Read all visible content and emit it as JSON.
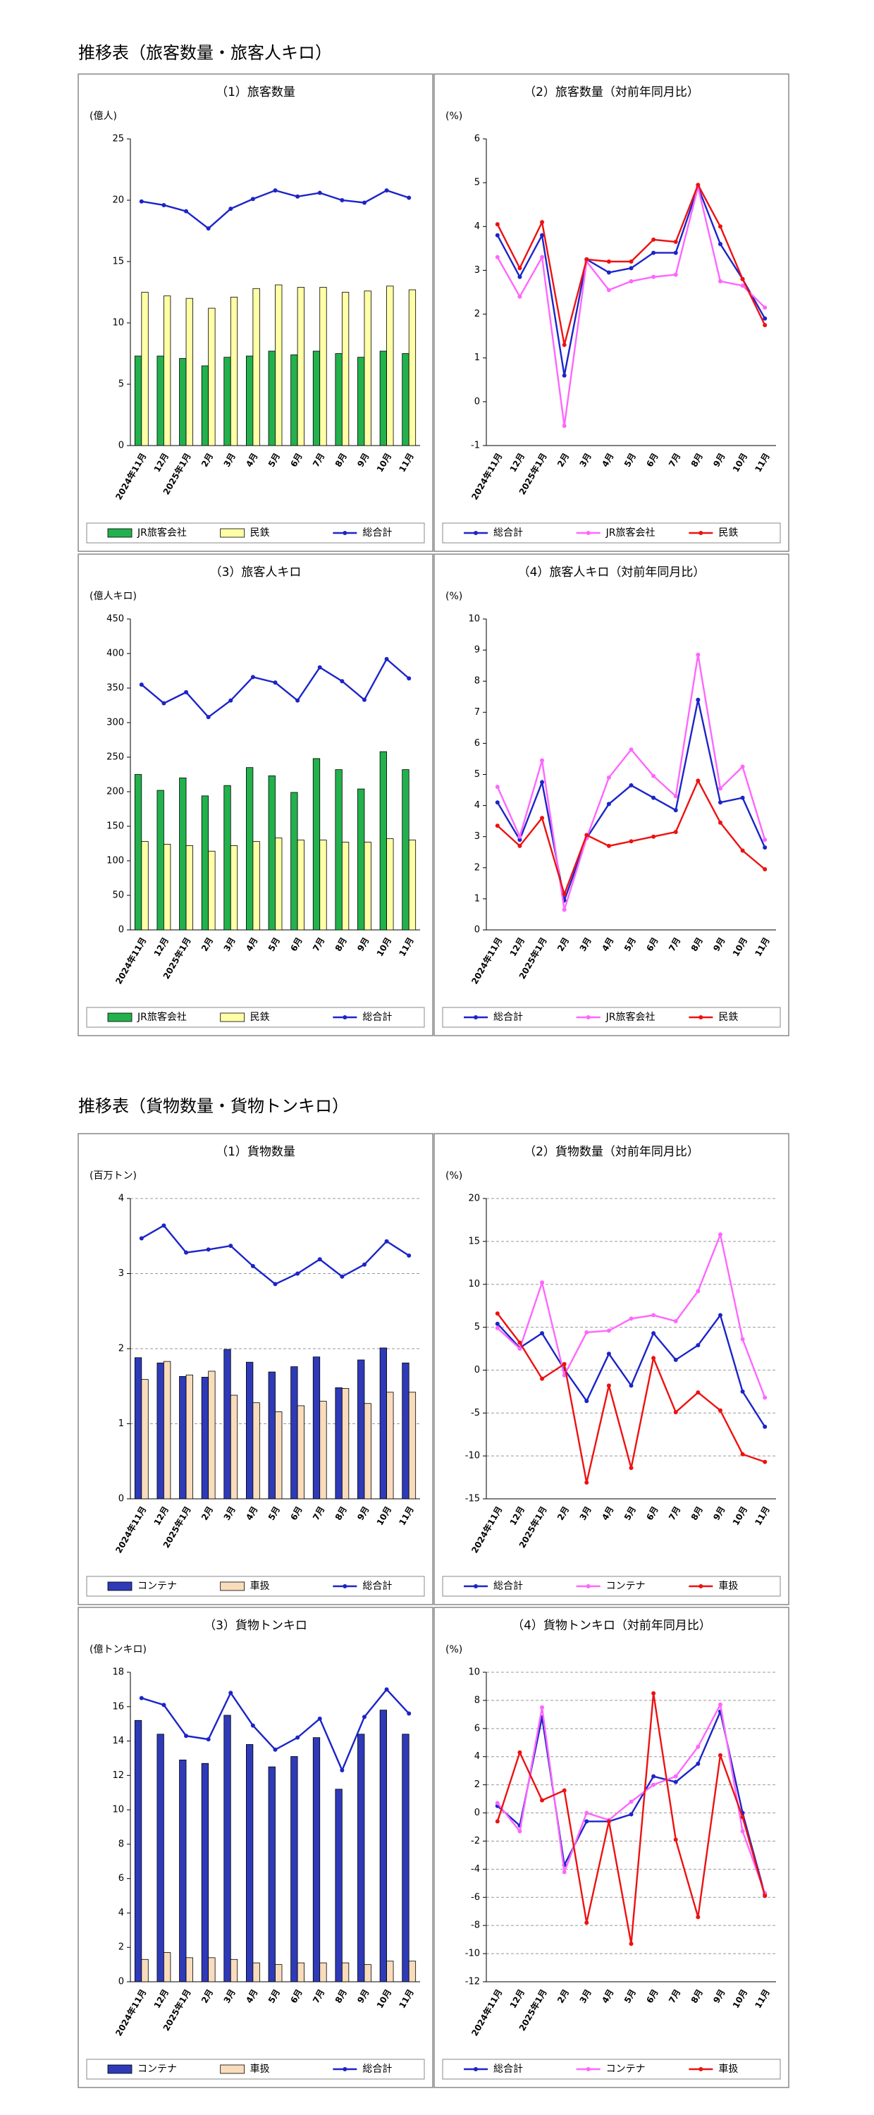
{
  "sections": [
    {
      "title": "推移表（旅客数量・旅客人キロ）"
    },
    {
      "title": "推移表（貨物数量・貨物トンキロ）"
    }
  ],
  "chart_data": [
    {
      "type": "combo",
      "title": "（1）旅客数量",
      "y_label": "(億人)",
      "categories": [
        "2024年11月",
        "12月",
        "2025年1月",
        "2月",
        "3月",
        "4月",
        "5月",
        "6月",
        "7月",
        "8月",
        "9月",
        "10月",
        "11月"
      ],
      "series": [
        {
          "name": "JR旅客会社",
          "type": "bar",
          "color": "#22b14c",
          "values": [
            7.3,
            7.3,
            7.1,
            6.5,
            7.2,
            7.3,
            7.7,
            7.4,
            7.7,
            7.5,
            7.2,
            7.7,
            7.5
          ]
        },
        {
          "name": "民鉄",
          "type": "bar",
          "color": "#ffffa6",
          "values": [
            12.5,
            12.2,
            12.0,
            11.2,
            12.1,
            12.8,
            13.1,
            12.9,
            12.9,
            12.5,
            12.6,
            13.0,
            12.7
          ]
        },
        {
          "name": "総合計",
          "type": "line",
          "color": "#1c24c8",
          "values": [
            19.9,
            19.6,
            19.1,
            17.7,
            19.3,
            20.1,
            20.8,
            20.3,
            20.6,
            20.0,
            19.8,
            20.8,
            20.2
          ]
        }
      ],
      "ylim": [
        0,
        25
      ],
      "yticks": [
        0,
        5,
        10,
        15,
        20,
        25
      ],
      "grid": false
    },
    {
      "type": "line",
      "title": "（2）旅客数量（対前年同月比）",
      "y_label": "(%)",
      "categories": [
        "2024年11月",
        "12月",
        "2025年1月",
        "2月",
        "3月",
        "4月",
        "5月",
        "6月",
        "7月",
        "8月",
        "9月",
        "10月",
        "11月"
      ],
      "series": [
        {
          "name": "総合計",
          "color": "#1c24c8",
          "values": [
            3.8,
            2.85,
            3.8,
            0.6,
            3.25,
            2.95,
            3.05,
            3.4,
            3.4,
            4.9,
            3.6,
            2.8,
            1.9
          ]
        },
        {
          "name": "JR旅客会社",
          "color": "#ff66ff",
          "values": [
            3.3,
            2.4,
            3.3,
            -0.55,
            3.2,
            2.55,
            2.75,
            2.85,
            2.9,
            4.9,
            2.75,
            2.65,
            2.15
          ]
        },
        {
          "name": "民鉄",
          "color": "#ee1111",
          "values": [
            4.05,
            3.05,
            4.1,
            1.3,
            3.25,
            3.2,
            3.2,
            3.7,
            3.65,
            4.95,
            4.0,
            2.8,
            1.75
          ]
        }
      ],
      "ylim": [
        -1,
        6
      ],
      "yticks": [
        -1,
        0,
        1,
        2,
        3,
        4,
        5,
        6
      ],
      "grid": false
    },
    {
      "type": "combo",
      "title": "（3）旅客人キロ",
      "y_label": "(億人キロ)",
      "categories": [
        "2024年11月",
        "12月",
        "2025年1月",
        "2月",
        "3月",
        "4月",
        "5月",
        "6月",
        "7月",
        "8月",
        "9月",
        "10月",
        "11月"
      ],
      "series": [
        {
          "name": "JR旅客会社",
          "type": "bar",
          "color": "#22b14c",
          "values": [
            225,
            202,
            220,
            194,
            209,
            235,
            223,
            199,
            248,
            232,
            204,
            258,
            232
          ]
        },
        {
          "name": "民鉄",
          "type": "bar",
          "color": "#ffffa6",
          "values": [
            128,
            124,
            122,
            114,
            122,
            128,
            133,
            130,
            130,
            127,
            127,
            132,
            130
          ]
        },
        {
          "name": "総合計",
          "type": "line",
          "color": "#1c24c8",
          "values": [
            355,
            328,
            344,
            308,
            332,
            366,
            358,
            332,
            380,
            360,
            333,
            392,
            364
          ]
        }
      ],
      "ylim": [
        0,
        450
      ],
      "yticks": [
        0,
        50,
        100,
        150,
        200,
        250,
        300,
        350,
        400,
        450
      ],
      "grid": false
    },
    {
      "type": "line",
      "title": "（4）旅客人キロ（対前年同月比）",
      "y_label": "(%)",
      "categories": [
        "2024年11月",
        "12月",
        "2025年1月",
        "2月",
        "3月",
        "4月",
        "5月",
        "6月",
        "7月",
        "8月",
        "9月",
        "10月",
        "11月"
      ],
      "series": [
        {
          "name": "総合計",
          "color": "#1c24c8",
          "values": [
            4.1,
            2.9,
            4.75,
            0.95,
            2.95,
            4.05,
            4.65,
            4.25,
            3.85,
            7.4,
            4.1,
            4.25,
            2.65
          ]
        },
        {
          "name": "JR旅客会社",
          "color": "#ff66ff",
          "values": [
            4.6,
            3.0,
            5.45,
            0.65,
            2.95,
            4.9,
            5.8,
            4.95,
            4.3,
            8.85,
            4.55,
            5.25,
            2.9
          ]
        },
        {
          "name": "民鉄",
          "color": "#ee1111",
          "values": [
            3.35,
            2.7,
            3.6,
            1.15,
            3.05,
            2.7,
            2.85,
            3.0,
            3.15,
            4.8,
            3.45,
            2.55,
            1.95
          ]
        }
      ],
      "ylim": [
        0,
        10
      ],
      "yticks": [
        0,
        1,
        2,
        3,
        4,
        5,
        6,
        7,
        8,
        9,
        10
      ],
      "grid": false
    },
    {
      "type": "combo",
      "title": "（1）貨物数量",
      "y_label": "(百万トン)",
      "categories": [
        "2024年11月",
        "12月",
        "2025年1月",
        "2月",
        "3月",
        "4月",
        "5月",
        "6月",
        "7月",
        "8月",
        "9月",
        "10月",
        "11月"
      ],
      "series": [
        {
          "name": "コンテナ",
          "type": "bar",
          "color": "#2e3ab8",
          "values": [
            1.88,
            1.81,
            1.63,
            1.62,
            1.99,
            1.82,
            1.69,
            1.76,
            1.89,
            1.48,
            1.85,
            2.01,
            1.81
          ]
        },
        {
          "name": "車扱",
          "type": "bar",
          "color": "#f8dcbc",
          "values": [
            1.59,
            1.83,
            1.65,
            1.7,
            1.38,
            1.28,
            1.16,
            1.24,
            1.3,
            1.47,
            1.27,
            1.42,
            1.42
          ]
        },
        {
          "name": "総合計",
          "type": "line",
          "color": "#1c24c8",
          "values": [
            3.47,
            3.64,
            3.28,
            3.32,
            3.37,
            3.1,
            2.86,
            3.0,
            3.19,
            2.96,
            3.12,
            3.43,
            3.24
          ]
        }
      ],
      "ylim": [
        0,
        4
      ],
      "yticks": [
        0,
        1,
        2,
        3,
        4
      ],
      "grid": true
    },
    {
      "type": "line",
      "title": "（2）貨物数量（対前年同月比）",
      "y_label": "(%)",
      "categories": [
        "2024年11月",
        "12月",
        "2025年1月",
        "2月",
        "3月",
        "4月",
        "5月",
        "6月",
        "7月",
        "8月",
        "9月",
        "10月",
        "11月"
      ],
      "series": [
        {
          "name": "総合計",
          "color": "#1c24c8",
          "values": [
            5.4,
            2.6,
            4.3,
            0.1,
            -3.6,
            1.9,
            -1.8,
            4.3,
            1.2,
            2.9,
            6.4,
            -2.5,
            -6.6
          ]
        },
        {
          "name": "コンテナ",
          "color": "#ff66ff",
          "values": [
            4.9,
            2.5,
            10.2,
            -0.6,
            4.4,
            4.6,
            6.0,
            6.4,
            5.7,
            9.2,
            15.8,
            3.6,
            -3.2
          ]
        },
        {
          "name": "車扱",
          "color": "#ee1111",
          "values": [
            6.6,
            3.2,
            -1.0,
            0.7,
            -13.1,
            -1.8,
            -11.4,
            1.4,
            -4.9,
            -2.6,
            -4.7,
            -9.8,
            -10.7
          ]
        }
      ],
      "ylim": [
        -15,
        20
      ],
      "yticks": [
        -15,
        -10,
        -5,
        0,
        5,
        10,
        15,
        20
      ],
      "grid": true
    },
    {
      "type": "combo",
      "title": "（3）貨物トンキロ",
      "y_label": "(億トンキロ)",
      "categories": [
        "2024年11月",
        "12月",
        "2025年1月",
        "2月",
        "3月",
        "4月",
        "5月",
        "6月",
        "7月",
        "8月",
        "9月",
        "10月",
        "11月"
      ],
      "series": [
        {
          "name": "コンテナ",
          "type": "bar",
          "color": "#2e3ab8",
          "values": [
            15.2,
            14.4,
            12.9,
            12.7,
            15.5,
            13.8,
            12.5,
            13.1,
            14.2,
            11.2,
            14.4,
            15.8,
            14.4
          ]
        },
        {
          "name": "車扱",
          "type": "bar",
          "color": "#f8dcbc",
          "values": [
            1.3,
            1.7,
            1.4,
            1.4,
            1.3,
            1.1,
            1.0,
            1.1,
            1.1,
            1.1,
            1.0,
            1.2,
            1.2
          ]
        },
        {
          "name": "総合計",
          "type": "line",
          "color": "#1c24c8",
          "values": [
            16.5,
            16.1,
            14.3,
            14.1,
            16.8,
            14.9,
            13.5,
            14.2,
            15.3,
            12.3,
            15.4,
            17.0,
            15.6
          ]
        }
      ],
      "ylim": [
        0,
        18
      ],
      "yticks": [
        0,
        2,
        4,
        6,
        8,
        10,
        12,
        14,
        16,
        18
      ],
      "grid": false
    },
    {
      "type": "line",
      "title": "（4）貨物トンキロ（対前年同月比）",
      "y_label": "(%)",
      "categories": [
        "2024年11月",
        "12月",
        "2025年1月",
        "2月",
        "3月",
        "4月",
        "5月",
        "6月",
        "7月",
        "8月",
        "9月",
        "10月",
        "11月"
      ],
      "series": [
        {
          "name": "総合計",
          "color": "#1c24c8",
          "values": [
            0.5,
            -0.9,
            6.8,
            -3.7,
            -0.6,
            -0.6,
            -0.1,
            2.6,
            2.2,
            3.5,
            7.2,
            0.0,
            -5.8
          ]
        },
        {
          "name": "コンテナ",
          "color": "#ff66ff",
          "values": [
            0.7,
            -1.3,
            7.5,
            -4.2,
            0.0,
            -0.5,
            0.8,
            2.0,
            2.6,
            4.7,
            7.7,
            -1.3,
            -5.7
          ]
        },
        {
          "name": "車扱",
          "color": "#ee1111",
          "values": [
            -0.6,
            4.3,
            0.9,
            1.6,
            -7.8,
            -0.6,
            -9.3,
            8.5,
            -1.9,
            -7.4,
            4.1,
            -0.3,
            -5.9
          ]
        }
      ],
      "ylim": [
        -12,
        10
      ],
      "yticks": [
        -12,
        -10,
        -8,
        -6,
        -4,
        -2,
        0,
        2,
        4,
        6,
        8,
        10
      ],
      "grid": true
    }
  ]
}
